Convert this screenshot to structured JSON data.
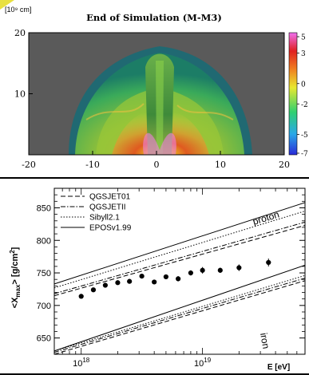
{
  "chart_data": [
    {
      "type": "heatmap",
      "title": "End of Simulation (M-M3)",
      "unit_label": "[10⁹ cm]",
      "x_ticks": [
        "-20",
        "-10",
        "0",
        "10",
        "20"
      ],
      "y_ticks": [
        "20",
        "10"
      ],
      "xlim": [
        -20,
        20
      ],
      "ylim": [
        0,
        20
      ],
      "colorbar": {
        "ticks": [
          "5",
          "3",
          "0",
          "-2",
          "-5",
          "-7"
        ],
        "range": [
          -7,
          5
        ],
        "colors": [
          "#2a2ad8",
          "#2aa8e8",
          "#30d070",
          "#e8e830",
          "#f08020",
          "#e02020",
          "#f070f0"
        ]
      },
      "background_color": "#5a5a5a"
    },
    {
      "type": "line",
      "xlabel": "E [eV]",
      "ylabel": "<X",
      "ylabel_sub": "max",
      "ylabel_unit": "> [g/cm",
      "ylabel_sup": "2",
      "ylabel_end": "]",
      "x_scale": "log",
      "xlim": [
        6e+17,
        7e+19
      ],
      "ylim": [
        625,
        880
      ],
      "x_tick_labels": [
        {
          "value": 1e+18,
          "base": "10",
          "exp": "18"
        },
        {
          "value": 1e+19,
          "base": "10",
          "exp": "19"
        }
      ],
      "y_ticks": [
        650,
        700,
        750,
        800,
        850
      ],
      "legend": {
        "placement": "top-left",
        "entries": [
          {
            "name": "QGSJET01",
            "style": "dashed"
          },
          {
            "name": "QGSJETII",
            "style": "dash-dot"
          },
          {
            "name": "Sibyll2.1",
            "style": "dotted"
          },
          {
            "name": "EPOSv1.99",
            "style": "solid"
          }
        ]
      },
      "annotations": [
        "proton",
        "iron"
      ],
      "series": [
        {
          "group": "proton",
          "style": "solid",
          "x": [
            6e+17,
            7e+19
          ],
          "y": [
            733,
            858
          ]
        },
        {
          "group": "proton",
          "style": "dotted",
          "x": [
            6e+17,
            7e+19
          ],
          "y": [
            727,
            845
          ]
        },
        {
          "group": "proton",
          "style": "dash-dot",
          "x": [
            6e+17,
            7e+19
          ],
          "y": [
            718,
            828
          ]
        },
        {
          "group": "proton",
          "style": "dashed",
          "x": [
            6e+17,
            7e+19
          ],
          "y": [
            715,
            823
          ]
        },
        {
          "group": "iron",
          "style": "solid",
          "x": [
            6e+17,
            7e+19
          ],
          "y": [
            630,
            762
          ]
        },
        {
          "group": "iron",
          "style": "dotted",
          "x": [
            6e+17,
            7e+19
          ],
          "y": [
            630,
            746
          ]
        },
        {
          "group": "iron",
          "style": "dash-dot",
          "x": [
            6e+17,
            7e+19
          ],
          "y": [
            628,
            742
          ]
        },
        {
          "group": "iron",
          "style": "dashed",
          "x": [
            6e+17,
            7e+19
          ],
          "y": [
            625,
            738
          ]
        }
      ],
      "data_points": {
        "x": [
          1e+18,
          1.26e+18,
          1.58e+18,
          2e+18,
          2.5e+18,
          3.16e+18,
          4e+18,
          5e+18,
          6.3e+18,
          8e+18,
          1e+19,
          1.4e+19,
          2e+19,
          3.5e+19
        ],
        "y": [
          714,
          724,
          731,
          735,
          737,
          745,
          736,
          744,
          741,
          750,
          754,
          754,
          758,
          766
        ],
        "err": [
          3,
          3,
          3,
          3,
          3,
          3,
          3,
          3,
          4,
          4,
          5,
          4,
          5,
          6
        ]
      }
    }
  ]
}
